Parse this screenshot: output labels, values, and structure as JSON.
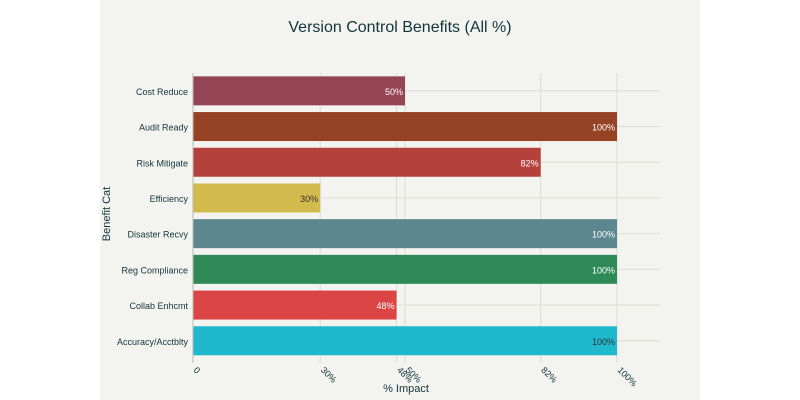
{
  "chart_data": {
    "type": "bar",
    "orientation": "horizontal",
    "title": "Version Control Benefits (All %)",
    "xlabel": "% Impact",
    "ylabel": "Benefit Cat",
    "categories": [
      "Cost Reduce",
      "Audit Ready",
      "Risk Mitigate",
      "Efficiency",
      "Disaster Recvy",
      "Reg Compliance",
      "Collab Enhcmt",
      "Accuracy/Acctblty"
    ],
    "values": [
      50,
      100,
      82,
      30,
      100,
      100,
      48,
      100
    ],
    "data_labels": [
      "50%",
      "100%",
      "82%",
      "30%",
      "100%",
      "100%",
      "48%",
      "100%"
    ],
    "colors": [
      "#944454",
      "#964325",
      "#B4413C",
      "#D2BA4C",
      "#5D878F",
      "#2E8B57",
      "#DB4545",
      "#1FB8CD"
    ],
    "label_colors": [
      "#ffffff",
      "#ffffff",
      "#ffffff",
      "#333333",
      "#ffffff",
      "#ffffff",
      "#ffffff",
      "#333333"
    ],
    "xticks": [
      {
        "value": 0,
        "label": "0"
      },
      {
        "value": 30,
        "label": "30%"
      },
      {
        "value": 48,
        "label": "48%"
      },
      {
        "value": 50,
        "label": "50%"
      },
      {
        "value": 82,
        "label": "82%"
      },
      {
        "value": 100,
        "label": "100%"
      }
    ],
    "xlim": [
      0,
      110
    ],
    "grid": true,
    "legend": "none",
    "background": "#f3f3ef",
    "outer_background": "#ffffff"
  }
}
